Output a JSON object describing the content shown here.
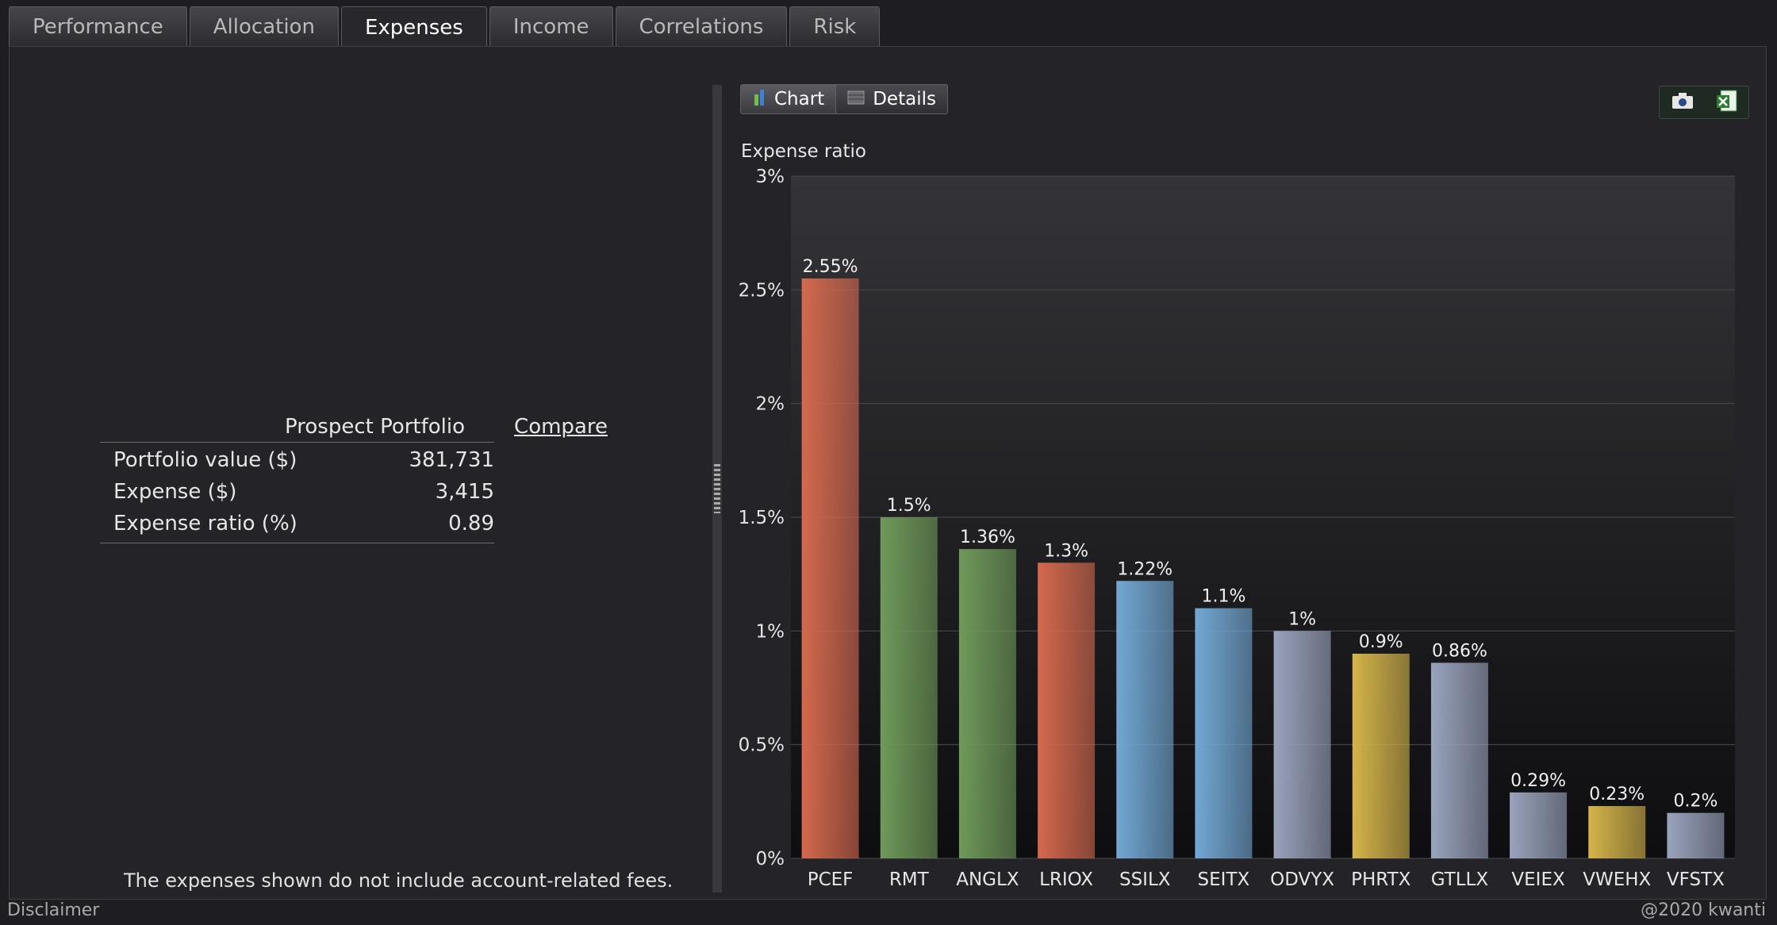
{
  "tabs": [
    {
      "label": "Performance"
    },
    {
      "label": "Allocation"
    },
    {
      "label": "Expenses"
    },
    {
      "label": "Income"
    },
    {
      "label": "Correlations"
    },
    {
      "label": "Risk"
    }
  ],
  "active_tab": "Expenses",
  "summary": {
    "column_header": "Prospect Portfolio",
    "compare_link": "Compare",
    "rows": [
      {
        "label": "Portfolio value ($)",
        "value": "381,731"
      },
      {
        "label": "Expense ($)",
        "value": "3,415"
      },
      {
        "label": "Expense ratio (%)",
        "value": "0.89"
      }
    ],
    "note": "The expenses shown do not include account-related fees."
  },
  "view_toggle": {
    "chart_label": "Chart",
    "details_label": "Details",
    "selected": "Chart"
  },
  "export_icons": [
    "camera-icon",
    "excel-icon"
  ],
  "chart_data": {
    "type": "bar",
    "ylabel": "Expense ratio",
    "categories": [
      "PCEF",
      "RMT",
      "ANGLX",
      "LRIOX",
      "SSILX",
      "SEITX",
      "ODVYX",
      "PHRTX",
      "GTLLX",
      "VEIEX",
      "VWEHX",
      "VFSTX"
    ],
    "values": [
      2.55,
      1.5,
      1.36,
      1.3,
      1.22,
      1.1,
      1.0,
      0.9,
      0.86,
      0.29,
      0.23,
      0.2
    ],
    "value_labels": [
      "2.55%",
      "1.5%",
      "1.36%",
      "1.3%",
      "1.22%",
      "1.1%",
      "1%",
      "0.9%",
      "0.86%",
      "0.29%",
      "0.23%",
      "0.2%"
    ],
    "bar_colors": [
      "#d4694e",
      "#6f9a5a",
      "#6f9a5a",
      "#d4694e",
      "#72a8d4",
      "#72a8d4",
      "#9aa3bd",
      "#d4b44a",
      "#9aa3bd",
      "#9aa3bd",
      "#d4b44a",
      "#9aa3bd"
    ],
    "ylim": [
      0,
      3
    ],
    "yticks": [
      0,
      0.5,
      1,
      1.5,
      2,
      2.5,
      3
    ],
    "ytick_labels": [
      "0%",
      "0.5%",
      "1%",
      "1.5%",
      "2%",
      "2.5%",
      "3%"
    ],
    "grid": true
  },
  "footer": {
    "disclaimer": "Disclaimer",
    "copyright": "@2020 kwanti"
  }
}
